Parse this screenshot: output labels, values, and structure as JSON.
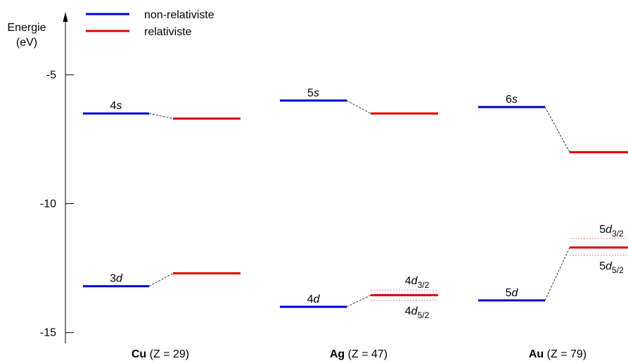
{
  "chart_data": {
    "type": "energy_level_diagram",
    "ylabel": {
      "line1": "Energie",
      "line2": "(eV)"
    },
    "ylim": [
      -16.1,
      -2.1
    ],
    "yticks": [
      {
        "value": -5,
        "label": "-5"
      },
      {
        "value": -10,
        "label": "-10"
      },
      {
        "value": -15,
        "label": "-15"
      }
    ],
    "legend": {
      "placement": "top-left",
      "entries": [
        {
          "name": "non-relativiste",
          "color": "#0000cc"
        },
        {
          "name": "relativiste",
          "color": "#e00000"
        }
      ]
    },
    "colors": {
      "nonrel": "#0000cc",
      "rel": "#e00000",
      "split": "#ff6b6b",
      "connector": "#000000",
      "axis": "#000000"
    },
    "groups": [
      {
        "element": "Cu",
        "suffix": " (Z = 29)",
        "levels": [
          {
            "orbital": {
              "n": "4",
              "l": "s"
            },
            "nonrel": -6.5,
            "rel": -6.7
          },
          {
            "orbital": {
              "n": "3",
              "l": "d"
            },
            "nonrel": -13.2,
            "rel": -12.7
          }
        ]
      },
      {
        "element": "Ag",
        "suffix": " (Z = 47)",
        "levels": [
          {
            "orbital": {
              "n": "5",
              "l": "s"
            },
            "nonrel": -6.0,
            "rel": -6.5
          },
          {
            "orbital": {
              "n": "4",
              "l": "d"
            },
            "nonrel": -14.0,
            "rel": -13.55,
            "split": [
              {
                "n": "4",
                "l": "d",
                "sub": "3/2",
                "value": -13.35
              },
              {
                "n": "4",
                "l": "d",
                "sub": "5/2",
                "value": -13.75
              }
            ]
          }
        ]
      },
      {
        "element": "Au",
        "suffix": " (Z = 79)",
        "levels": [
          {
            "orbital": {
              "n": "6",
              "l": "s"
            },
            "nonrel": -6.25,
            "rel": -8.0
          },
          {
            "orbital": {
              "n": "5",
              "l": "d"
            },
            "nonrel": -13.75,
            "rel": -11.7,
            "split": [
              {
                "n": "5",
                "l": "d",
                "sub": "3/2",
                "value": -11.35
              },
              {
                "n": "5",
                "l": "d",
                "sub": "5/2",
                "value": -12.0
              }
            ]
          }
        ]
      }
    ]
  }
}
